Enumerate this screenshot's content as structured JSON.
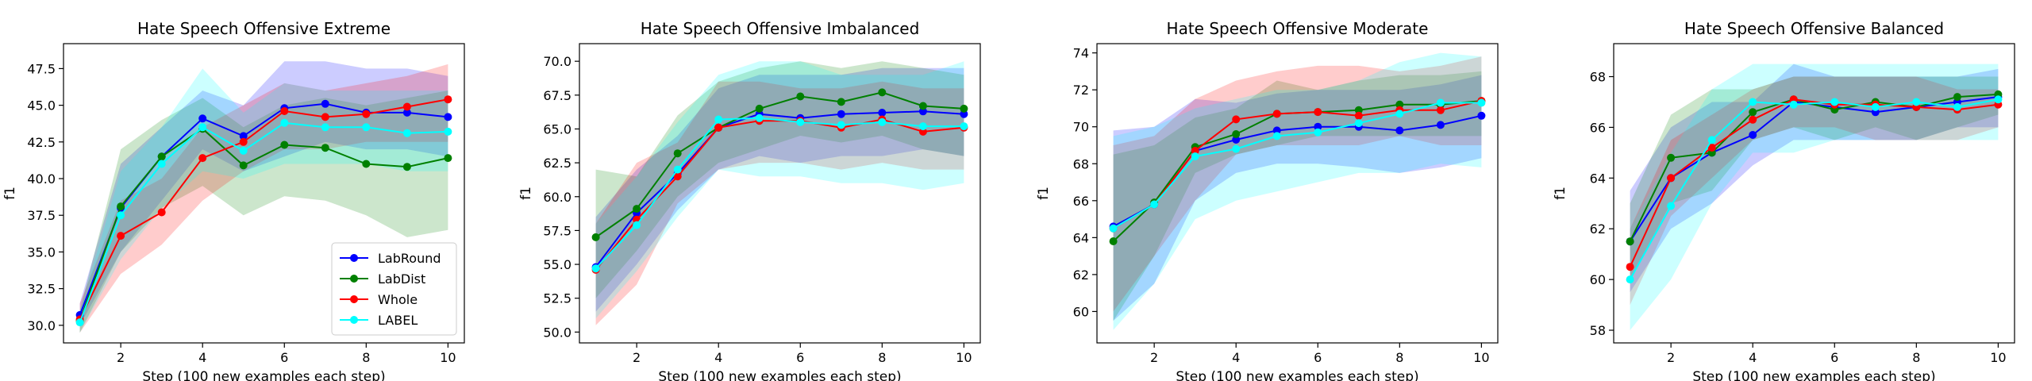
{
  "chart_data": [
    {
      "type": "line",
      "title": "Hate Speech Offensive Extreme",
      "xlabel": "Step (100 new examples each step)",
      "ylabel": "f1",
      "xlim": [
        0.6,
        10.4
      ],
      "ylim": [
        28.8,
        49.2
      ],
      "xticks": [
        2,
        4,
        6,
        8,
        10
      ],
      "yticks": [
        30.0,
        32.5,
        35.0,
        37.5,
        40.0,
        42.5,
        45.0,
        47.5
      ],
      "ytick_decimals": 1,
      "legend": "lower-right",
      "x": [
        1,
        2,
        3,
        4,
        5,
        6,
        7,
        8,
        9,
        10
      ],
      "series": [
        {
          "name": "LabRound",
          "color": "#0000ff",
          "values": [
            30.7,
            38.0,
            41.5,
            44.1,
            42.9,
            44.8,
            45.1,
            44.5,
            44.5,
            44.2
          ],
          "lower": [
            30.0,
            35.0,
            38.5,
            42.0,
            40.5,
            41.5,
            42.5,
            42.0,
            42.0,
            41.5
          ],
          "upper": [
            31.5,
            41.0,
            43.5,
            46.0,
            45.0,
            48.0,
            48.0,
            47.5,
            47.5,
            47.0
          ]
        },
        {
          "name": "LabDist",
          "color": "#008000",
          "values": [
            30.3,
            38.1,
            41.5,
            43.4,
            40.9,
            42.3,
            42.1,
            41.0,
            40.8,
            41.4
          ],
          "lower": [
            29.5,
            35.0,
            38.0,
            39.5,
            37.5,
            38.8,
            38.5,
            37.5,
            36.0,
            36.5
          ],
          "upper": [
            31.0,
            42.0,
            44.0,
            45.5,
            43.5,
            45.0,
            45.5,
            45.0,
            45.5,
            46.0
          ]
        },
        {
          "name": "Whole",
          "color": "#ff0000",
          "values": [
            30.4,
            36.1,
            37.7,
            41.4,
            42.5,
            44.6,
            44.2,
            44.4,
            44.9,
            45.4
          ],
          "lower": [
            29.5,
            33.5,
            35.5,
            38.5,
            40.5,
            42.0,
            42.0,
            42.5,
            42.5,
            42.5
          ],
          "upper": [
            31.5,
            38.5,
            40.0,
            43.5,
            45.0,
            46.5,
            46.0,
            46.5,
            47.0,
            47.8
          ]
        },
        {
          "name": "LABEL",
          "color": "#00ffff",
          "values": [
            30.2,
            37.5,
            41.0,
            43.5,
            41.9,
            43.8,
            43.5,
            43.5,
            43.1,
            43.2
          ],
          "lower": [
            29.5,
            34.5,
            38.0,
            40.5,
            40.0,
            41.0,
            41.0,
            41.0,
            40.5,
            40.5
          ],
          "upper": [
            31.0,
            40.5,
            43.5,
            47.5,
            44.5,
            46.5,
            46.0,
            46.0,
            46.0,
            46.0
          ]
        }
      ]
    },
    {
      "type": "line",
      "title": "Hate Speech Offensive Imbalanced",
      "xlabel": "Step (100 new examples each step)",
      "ylabel": "f1",
      "xlim": [
        0.6,
        10.4
      ],
      "ylim": [
        49.2,
        71.3
      ],
      "xticks": [
        2,
        4,
        6,
        8,
        10
      ],
      "yticks": [
        50.0,
        52.5,
        55.0,
        57.5,
        60.0,
        62.5,
        65.0,
        67.5,
        70.0
      ],
      "ytick_decimals": 1,
      "legend": "",
      "x": [
        1,
        2,
        3,
        4,
        5,
        6,
        7,
        8,
        9,
        10
      ],
      "series": [
        {
          "name": "LabRound",
          "color": "#0000ff",
          "values": [
            54.8,
            58.8,
            61.7,
            65.1,
            66.1,
            65.8,
            66.1,
            66.2,
            66.3,
            66.1
          ],
          "lower": [
            51.5,
            55.0,
            59.0,
            62.0,
            63.0,
            62.5,
            63.0,
            63.0,
            63.5,
            63.0
          ],
          "upper": [
            58.5,
            62.0,
            64.5,
            68.0,
            69.0,
            69.0,
            69.0,
            69.5,
            69.5,
            69.5
          ]
        },
        {
          "name": "LabDist",
          "color": "#008000",
          "values": [
            57.0,
            59.1,
            63.2,
            65.1,
            66.5,
            67.4,
            67.0,
            67.7,
            66.7,
            66.5
          ],
          "lower": [
            52.5,
            56.0,
            60.0,
            62.5,
            63.5,
            64.5,
            64.0,
            64.5,
            63.5,
            63.0
          ],
          "upper": [
            62.0,
            61.5,
            66.0,
            68.5,
            69.5,
            70.0,
            69.5,
            70.0,
            69.5,
            69.0
          ]
        },
        {
          "name": "Whole",
          "color": "#ff0000",
          "values": [
            54.6,
            58.3,
            61.5,
            65.1,
            65.6,
            65.6,
            65.1,
            65.7,
            64.8,
            65.1
          ],
          "lower": [
            50.5,
            53.5,
            59.5,
            62.0,
            62.5,
            62.5,
            62.0,
            62.5,
            62.0,
            62.0
          ],
          "upper": [
            58.0,
            62.5,
            64.0,
            68.5,
            68.5,
            68.0,
            68.0,
            68.5,
            68.0,
            68.0
          ]
        },
        {
          "name": "LABEL",
          "color": "#00ffff",
          "values": [
            54.7,
            57.9,
            62.0,
            65.7,
            65.8,
            65.5,
            65.3,
            65.5,
            65.2,
            65.2
          ],
          "lower": [
            51.0,
            54.5,
            58.5,
            62.0,
            61.5,
            61.5,
            61.0,
            61.0,
            60.5,
            61.0
          ],
          "upper": [
            58.0,
            61.5,
            65.5,
            69.0,
            70.0,
            70.0,
            69.0,
            69.0,
            69.0,
            70.0
          ]
        }
      ]
    },
    {
      "type": "line",
      "title": "Hate Speech Offensive Moderate",
      "xlabel": "Step (100 new examples each step)",
      "ylabel": "f1",
      "xlim": [
        0.6,
        10.4
      ],
      "ylim": [
        58.3,
        74.5
      ],
      "xticks": [
        2,
        4,
        6,
        8,
        10
      ],
      "yticks": [
        60,
        62,
        64,
        66,
        68,
        70,
        72,
        74
      ],
      "ytick_decimals": 0,
      "legend": "",
      "x": [
        1,
        2,
        3,
        4,
        5,
        6,
        7,
        8,
        9,
        10
      ],
      "series": [
        {
          "name": "LabRound",
          "color": "#0000ff",
          "values": [
            64.6,
            65.8,
            68.7,
            69.3,
            69.8,
            70.0,
            70.0,
            69.8,
            70.1,
            70.6
          ],
          "lower": [
            59.5,
            61.5,
            66.0,
            67.5,
            68.0,
            68.0,
            67.8,
            67.5,
            67.8,
            68.3
          ],
          "upper": [
            69.8,
            70.0,
            71.5,
            71.3,
            71.8,
            72.0,
            72.0,
            72.0,
            72.3,
            72.8
          ]
        },
        {
          "name": "LabDist",
          "color": "#008000",
          "values": [
            63.8,
            65.9,
            68.9,
            69.6,
            70.7,
            70.8,
            70.9,
            71.2,
            71.2,
            71.4
          ],
          "lower": [
            59.5,
            63.0,
            67.5,
            68.5,
            69.0,
            69.5,
            69.5,
            69.5,
            69.5,
            69.5
          ],
          "upper": [
            68.5,
            69.0,
            70.5,
            71.0,
            72.5,
            72.0,
            72.5,
            72.8,
            72.8,
            73.0
          ]
        },
        {
          "name": "Whole",
          "color": "#ff0000",
          "values": [
            64.5,
            65.8,
            68.7,
            70.4,
            70.7,
            70.8,
            70.6,
            70.9,
            70.9,
            71.4
          ],
          "lower": [
            60.0,
            63.0,
            66.0,
            68.5,
            69.0,
            69.0,
            69.0,
            69.5,
            69.0,
            69.0
          ],
          "upper": [
            69.0,
            69.5,
            71.5,
            72.5,
            73.0,
            73.3,
            73.3,
            73.0,
            73.3,
            73.8
          ]
        },
        {
          "name": "LABEL",
          "color": "#00ffff",
          "values": [
            64.5,
            65.8,
            68.4,
            68.8,
            69.5,
            69.7,
            70.2,
            70.7,
            71.3,
            71.3
          ],
          "lower": [
            59.0,
            61.5,
            65.0,
            66.0,
            66.5,
            67.0,
            67.5,
            67.5,
            68.0,
            67.8
          ],
          "upper": [
            69.5,
            70.0,
            71.0,
            71.5,
            72.0,
            72.0,
            72.5,
            73.5,
            74.0,
            73.8
          ]
        }
      ]
    },
    {
      "type": "line",
      "title": "Hate Speech Offensive Balanced",
      "xlabel": "Step (100 new examples each step)",
      "ylabel": "f1",
      "xlim": [
        0.6,
        10.4
      ],
      "ylim": [
        57.5,
        69.3
      ],
      "xticks": [
        2,
        4,
        6,
        8,
        10
      ],
      "yticks": [
        58,
        60,
        62,
        64,
        66,
        68
      ],
      "ytick_decimals": 0,
      "legend": "",
      "x": [
        1,
        2,
        3,
        4,
        5,
        6,
        7,
        8,
        9,
        10
      ],
      "series": [
        {
          "name": "LabRound",
          "color": "#0000ff",
          "values": [
            61.5,
            64.0,
            65.0,
            65.7,
            67.0,
            66.8,
            66.6,
            66.8,
            67.0,
            67.2
          ],
          "lower": [
            59.5,
            62.0,
            63.0,
            64.5,
            65.5,
            65.5,
            65.5,
            65.5,
            66.0,
            66.0
          ],
          "upper": [
            63.5,
            66.0,
            67.0,
            67.0,
            68.5,
            68.0,
            68.0,
            68.0,
            68.0,
            68.3
          ]
        },
        {
          "name": "LabDist",
          "color": "#008000",
          "values": [
            61.5,
            64.8,
            65.0,
            66.6,
            67.1,
            66.7,
            67.0,
            66.8,
            67.2,
            67.3
          ],
          "lower": [
            60.0,
            63.0,
            63.5,
            65.5,
            66.0,
            65.5,
            66.0,
            65.5,
            66.0,
            66.5
          ],
          "upper": [
            63.0,
            66.5,
            67.5,
            67.5,
            68.0,
            68.0,
            68.0,
            68.0,
            68.0,
            68.0
          ]
        },
        {
          "name": "Whole",
          "color": "#ff0000",
          "values": [
            60.5,
            64.0,
            65.2,
            66.3,
            67.1,
            66.9,
            66.9,
            66.8,
            66.7,
            66.9
          ],
          "lower": [
            59.0,
            62.5,
            64.0,
            65.5,
            66.0,
            66.0,
            65.5,
            65.5,
            65.5,
            66.0
          ],
          "upper": [
            62.0,
            65.5,
            66.5,
            67.5,
            68.0,
            68.0,
            68.0,
            68.0,
            67.5,
            67.5
          ]
        },
        {
          "name": "LABEL",
          "color": "#00ffff",
          "values": [
            60.0,
            62.9,
            65.5,
            67.0,
            66.9,
            67.0,
            66.8,
            67.0,
            66.8,
            67.1
          ],
          "lower": [
            58.0,
            60.0,
            63.0,
            65.0,
            65.0,
            65.5,
            65.5,
            65.5,
            65.5,
            65.5
          ],
          "upper": [
            62.0,
            65.0,
            67.5,
            68.5,
            68.5,
            68.5,
            68.5,
            68.5,
            68.5,
            68.5
          ]
        }
      ]
    }
  ]
}
